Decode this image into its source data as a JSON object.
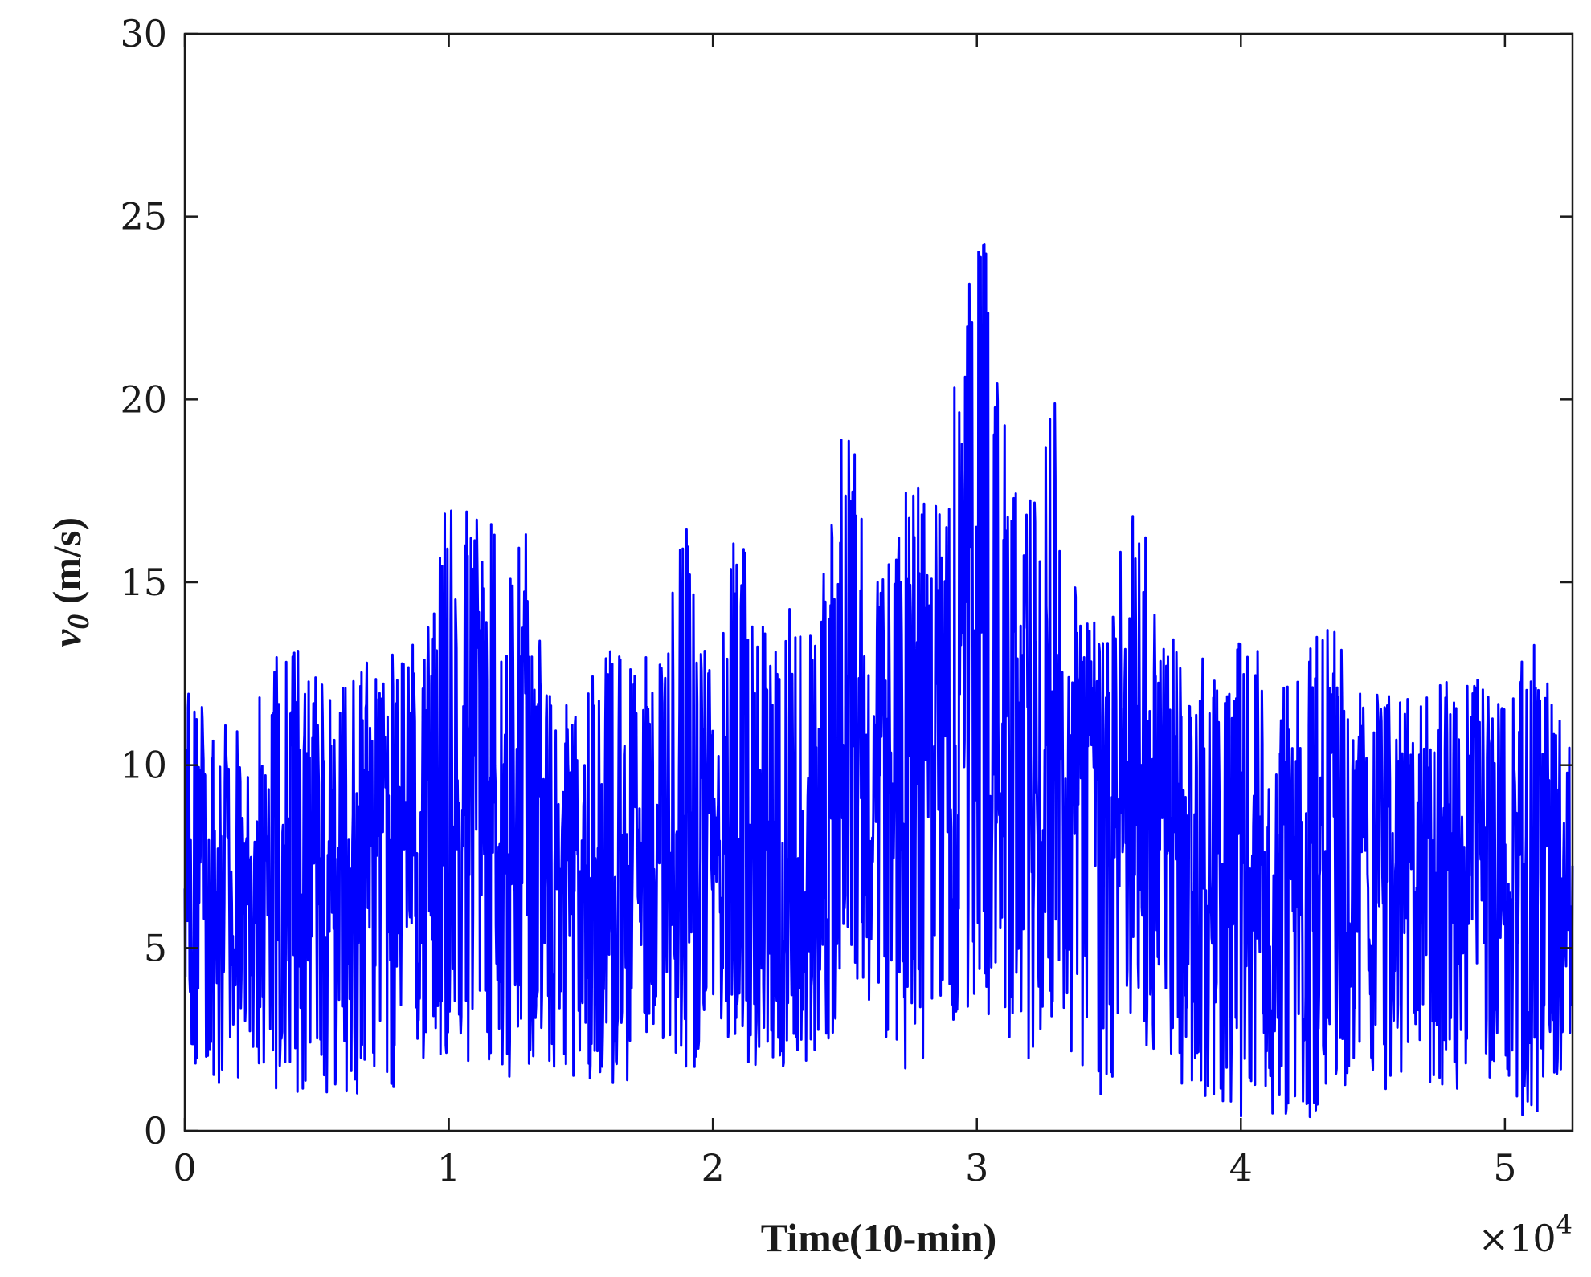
{
  "chart_data": {
    "type": "line",
    "title": "",
    "xlabel": "Time(10-min)",
    "ylabel_main": "v",
    "ylabel_sub": "0",
    "ylabel_unit": " (m/s)",
    "x_multiplier_text": "×10",
    "x_multiplier_exp": "4",
    "xlim": [
      0,
      5.256
    ],
    "ylim": [
      0,
      30
    ],
    "xticks": [
      0,
      1,
      2,
      3,
      4,
      5
    ],
    "xtick_labels": [
      "0",
      "1",
      "2",
      "3",
      "4",
      "5"
    ],
    "yticks": [
      0,
      5,
      10,
      15,
      20,
      25,
      30
    ],
    "ytick_labels": [
      "0",
      "5",
      "10",
      "15",
      "20",
      "25",
      "30"
    ],
    "grid": false,
    "line_color": "#0000ff",
    "series": [
      {
        "x": [
          0,
          0.1,
          0.2,
          0.3,
          0.4,
          0.5,
          0.6,
          0.7,
          0.8,
          0.9,
          1.0,
          1.1,
          1.2,
          1.3,
          1.4,
          1.5,
          1.6,
          1.7,
          1.8,
          1.9,
          2.0,
          2.1,
          2.2,
          2.3,
          2.4,
          2.5,
          2.6,
          2.7,
          2.8,
          2.9,
          3.0,
          3.1,
          3.2,
          3.3,
          3.4,
          3.5,
          3.6,
          3.7,
          3.8,
          3.9,
          4.0,
          4.1,
          4.2,
          4.3,
          4.4,
          4.5,
          4.6,
          4.7,
          4.8,
          4.9,
          5.0,
          5.1,
          5.2,
          5.256
        ],
        "mean": [
          7.2,
          6.8,
          6.6,
          6.8,
          7.0,
          7.0,
          7.0,
          7.0,
          7.2,
          7.4,
          7.6,
          8.0,
          8.2,
          8.0,
          7.4,
          6.8,
          6.8,
          7.0,
          7.4,
          7.6,
          7.6,
          7.4,
          7.2,
          7.0,
          6.8,
          10.6,
          10.2,
          10.4,
          10.8,
          11.0,
          11.6,
          11.4,
          11.0,
          11.0,
          9.8,
          8.8,
          9.0,
          8.0,
          7.6,
          7.2,
          6.8,
          6.8,
          6.8,
          6.8,
          6.8,
          6.8,
          6.8,
          6.8,
          6.8,
          6.8,
          6.6,
          6.4,
          6.4,
          6.6
        ],
        "upper": [
          12.5,
          11.5,
          11.0,
          12.5,
          13.5,
          12.5,
          13.0,
          13.5,
          13.0,
          14.0,
          18.5,
          17.3,
          16.5,
          16.3,
          11.0,
          12.5,
          13.5,
          12.5,
          13.5,
          16.7,
          12.0,
          17.2,
          13.5,
          14.5,
          14.0,
          20.8,
          15.0,
          17.0,
          18.5,
          19.5,
          27.1,
          20.0,
          18.0,
          20.0,
          14.0,
          14.0,
          18.3,
          14.0,
          13.5,
          12.5,
          13.5,
          13.0,
          12.0,
          16.1,
          12.5,
          12.0,
          12.0,
          12.0,
          12.5,
          12.5,
          12.0,
          13.5,
          11.5,
          10.5
        ],
        "lower": [
          2.0,
          1.5,
          0.8,
          1.5,
          0.5,
          1.0,
          1.0,
          1.0,
          0.5,
          1.5,
          1.0,
          1.0,
          1.5,
          1.2,
          1.0,
          1.5,
          0.7,
          1.5,
          2.2,
          1.5,
          2.0,
          1.5,
          2.0,
          1.5,
          1.5,
          3.0,
          3.5,
          1.0,
          1.5,
          2.5,
          1.2,
          2.5,
          1.8,
          3.0,
          1.5,
          0.7,
          2.5,
          2.0,
          0.5,
          1.0,
          0.2,
          0.5,
          0.3,
          0.2,
          1.0,
          0.8,
          1.5,
          1.0,
          0.8,
          1.5,
          0.5,
          0.3,
          0.8,
          1.5
        ]
      }
    ]
  }
}
